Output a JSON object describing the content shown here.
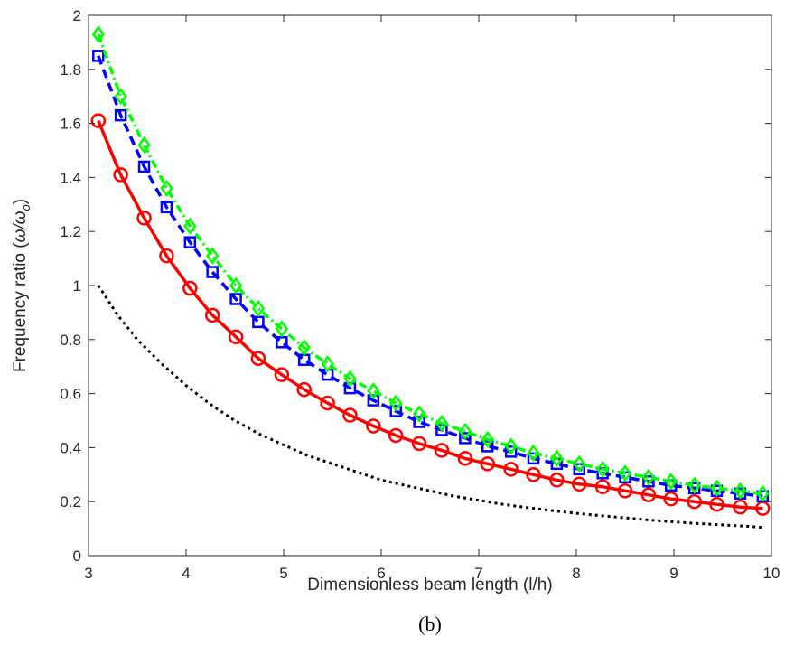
{
  "chart_data": {
    "type": "line",
    "title": "",
    "caption": "(b)",
    "xlabel": "Dimensionless beam length (l/h)",
    "ylabel_main": "Frequency ratio (",
    "ylabel_omega": "ω/ω",
    "ylabel_sub": "o",
    "ylabel_close": ")",
    "xlim": [
      3,
      10
    ],
    "ylim": [
      0,
      2
    ],
    "xticks": [
      3,
      4,
      5,
      6,
      7,
      8,
      9,
      10
    ],
    "yticks": [
      0,
      0.2,
      0.4,
      0.6,
      0.8,
      1,
      1.2,
      1.4,
      1.6,
      1.8,
      2
    ],
    "xtick_labels": [
      "3",
      "4",
      "5",
      "6",
      "7",
      "8",
      "9",
      "10"
    ],
    "ytick_labels": [
      "0",
      "0.2",
      "0.4",
      "0.6",
      "0.8",
      "1",
      "1.2",
      "1.4",
      "1.6",
      "1.8",
      "2"
    ],
    "grid": false,
    "series": [
      {
        "color": "#000000",
        "line": "dotted",
        "marker": "none",
        "x": [
          3.1,
          3.3,
          3.5,
          3.75,
          4.0,
          4.25,
          4.5,
          4.75,
          5.0,
          5.25,
          5.5,
          5.75,
          6.0,
          6.25,
          6.5,
          6.75,
          7.0,
          7.25,
          7.5,
          7.75,
          8.0,
          8.25,
          8.5,
          8.75,
          9.0,
          9.25,
          9.5,
          9.75,
          9.9
        ],
        "y": [
          1.0,
          0.89,
          0.8,
          0.71,
          0.63,
          0.56,
          0.5,
          0.45,
          0.41,
          0.37,
          0.34,
          0.31,
          0.28,
          0.26,
          0.24,
          0.22,
          0.205,
          0.19,
          0.178,
          0.167,
          0.157,
          0.148,
          0.14,
          0.132,
          0.125,
          0.119,
          0.114,
          0.109,
          0.105
        ]
      },
      {
        "color": "#ff0000",
        "line": "solid",
        "marker": "circle",
        "x": [
          3.1,
          3.33,
          3.57,
          3.8,
          4.04,
          4.27,
          4.51,
          4.74,
          4.98,
          5.21,
          5.45,
          5.68,
          5.92,
          6.15,
          6.39,
          6.62,
          6.86,
          7.09,
          7.33,
          7.56,
          7.8,
          8.03,
          8.27,
          8.5,
          8.74,
          8.97,
          9.21,
          9.44,
          9.68,
          9.91
        ],
        "y": [
          1.61,
          1.41,
          1.25,
          1.11,
          0.99,
          0.89,
          0.81,
          0.73,
          0.67,
          0.615,
          0.565,
          0.52,
          0.48,
          0.445,
          0.415,
          0.39,
          0.36,
          0.34,
          0.32,
          0.3,
          0.28,
          0.265,
          0.255,
          0.24,
          0.225,
          0.21,
          0.2,
          0.19,
          0.18,
          0.175
        ]
      },
      {
        "color": "#0000ff",
        "line": "dashed",
        "marker": "square",
        "x": [
          3.1,
          3.33,
          3.57,
          3.8,
          4.04,
          4.27,
          4.51,
          4.74,
          4.98,
          5.21,
          5.45,
          5.68,
          5.92,
          6.15,
          6.39,
          6.62,
          6.86,
          7.09,
          7.33,
          7.56,
          7.8,
          8.03,
          8.27,
          8.5,
          8.74,
          8.97,
          9.21,
          9.44,
          9.68,
          9.91
        ],
        "y": [
          1.85,
          1.63,
          1.44,
          1.29,
          1.16,
          1.05,
          0.95,
          0.865,
          0.79,
          0.725,
          0.67,
          0.62,
          0.575,
          0.535,
          0.495,
          0.465,
          0.435,
          0.405,
          0.385,
          0.36,
          0.34,
          0.32,
          0.305,
          0.29,
          0.275,
          0.26,
          0.25,
          0.24,
          0.23,
          0.22
        ]
      },
      {
        "color": "#00ff00",
        "line": "dashdot",
        "marker": "diamond",
        "x": [
          3.1,
          3.33,
          3.57,
          3.8,
          4.04,
          4.27,
          4.51,
          4.74,
          4.98,
          5.21,
          5.45,
          5.68,
          5.92,
          6.15,
          6.39,
          6.62,
          6.86,
          7.09,
          7.33,
          7.56,
          7.8,
          8.03,
          8.27,
          8.5,
          8.74,
          8.97,
          9.21,
          9.44,
          9.68,
          9.91
        ],
        "y": [
          1.93,
          1.7,
          1.52,
          1.36,
          1.22,
          1.11,
          1.0,
          0.915,
          0.84,
          0.77,
          0.71,
          0.655,
          0.61,
          0.565,
          0.525,
          0.49,
          0.46,
          0.43,
          0.405,
          0.38,
          0.36,
          0.34,
          0.32,
          0.305,
          0.29,
          0.275,
          0.26,
          0.25,
          0.24,
          0.23
        ]
      }
    ]
  }
}
